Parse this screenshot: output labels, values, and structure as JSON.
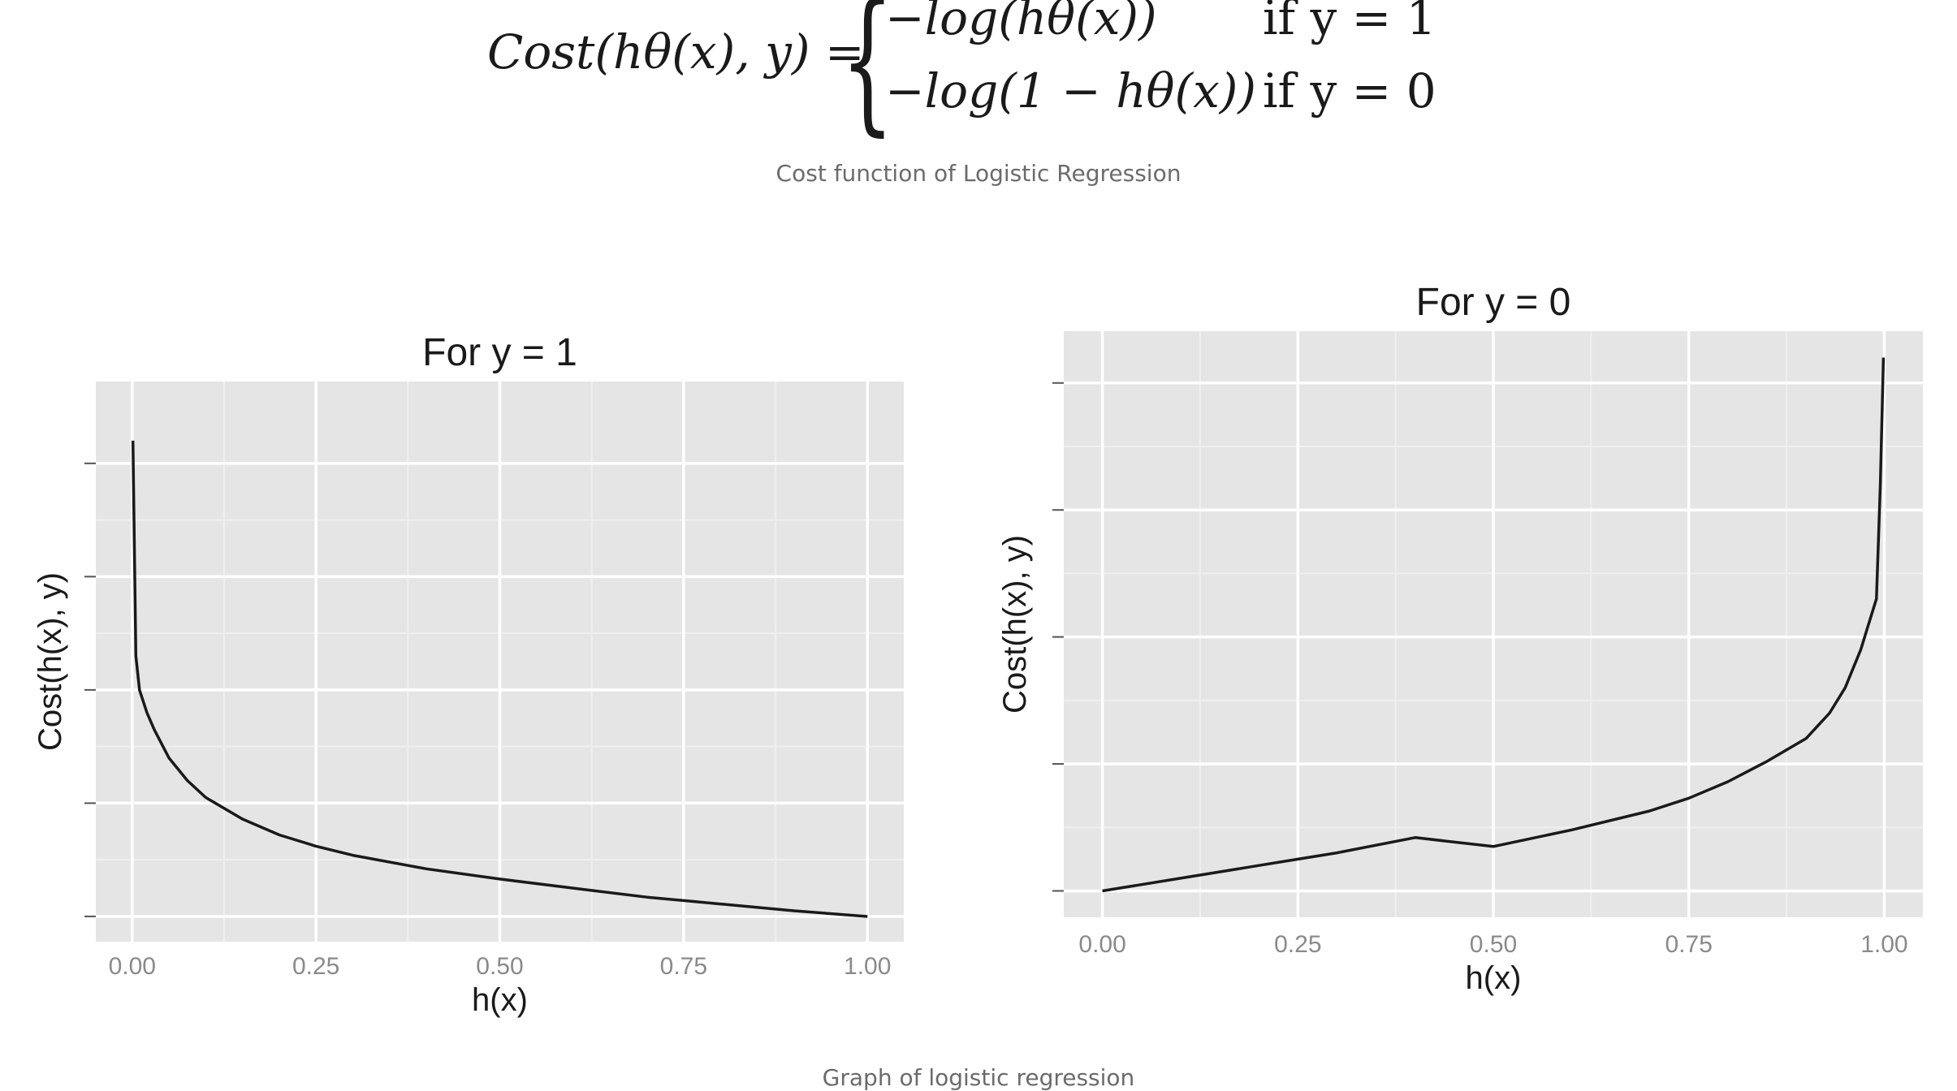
{
  "formula": {
    "lhs": "Cost(hθ(x), y) =",
    "case1": "−log(hθ(x))",
    "cond1": "if y = 1",
    "case2": "−log(1 − hθ(x))",
    "cond2": "if y = 0"
  },
  "captions": {
    "formula_caption": "Cost function of Logistic Regression",
    "graph_caption": "Graph of logistic regression"
  },
  "colors": {
    "panel_bg": "#e5e5e5",
    "grid_major": "#ffffff",
    "grid_minor": "#efefef",
    "curve": "#1a1a1a"
  },
  "chart_data": [
    {
      "type": "line",
      "title": "For y = 1",
      "xlabel": "h(x)",
      "ylabel": "Cost(h(x), y)",
      "xticks": [
        "0.00",
        "0.25",
        "0.50",
        "0.75",
        "1.00"
      ],
      "xlim": [
        0,
        1
      ],
      "ylim": [
        0,
        4.5
      ],
      "ytick_values": [
        0,
        1,
        2,
        3,
        4
      ],
      "ytick_labels_shown": false,
      "grid": true,
      "series": [
        {
          "x": [
            0.001,
            0.005,
            0.01,
            0.02,
            0.03,
            0.05,
            0.075,
            0.1,
            0.15,
            0.2,
            0.25,
            0.3,
            0.4,
            0.5,
            0.6,
            0.7,
            0.75,
            0.8,
            0.9,
            1.0
          ],
          "values": [
            4.2,
            2.3,
            2.0,
            1.8,
            1.65,
            1.4,
            1.2,
            1.05,
            0.86,
            0.72,
            0.62,
            0.54,
            0.42,
            0.33,
            0.25,
            0.17,
            0.14,
            0.11,
            0.05,
            0.0
          ]
        }
      ]
    },
    {
      "type": "line",
      "title": "For y = 0",
      "xlabel": "h(x)",
      "ylabel": "Cost(h(x), y)",
      "xticks": [
        "0.00",
        "0.25",
        "0.50",
        "0.75",
        "1.00"
      ],
      "xlim": [
        0,
        1
      ],
      "ylim": [
        0,
        4.2
      ],
      "ytick_values": [
        0,
        1,
        2,
        3,
        4
      ],
      "ytick_labels_shown": false,
      "grid": true,
      "series": [
        {
          "x": [
            0.0,
            0.1,
            0.2,
            0.25,
            0.3,
            0.4,
            0.5,
            0.6,
            0.7,
            0.75,
            0.8,
            0.85,
            0.9,
            0.93,
            0.95,
            0.97,
            0.98,
            0.99,
            0.995,
            0.999
          ],
          "values": [
            0.0,
            0.1,
            0.2,
            0.25,
            0.3,
            0.42,
            0.35,
            0.48,
            0.63,
            0.73,
            0.86,
            1.02,
            1.2,
            1.4,
            1.6,
            1.9,
            2.1,
            2.3,
            3.2,
            4.2
          ]
        }
      ]
    }
  ]
}
